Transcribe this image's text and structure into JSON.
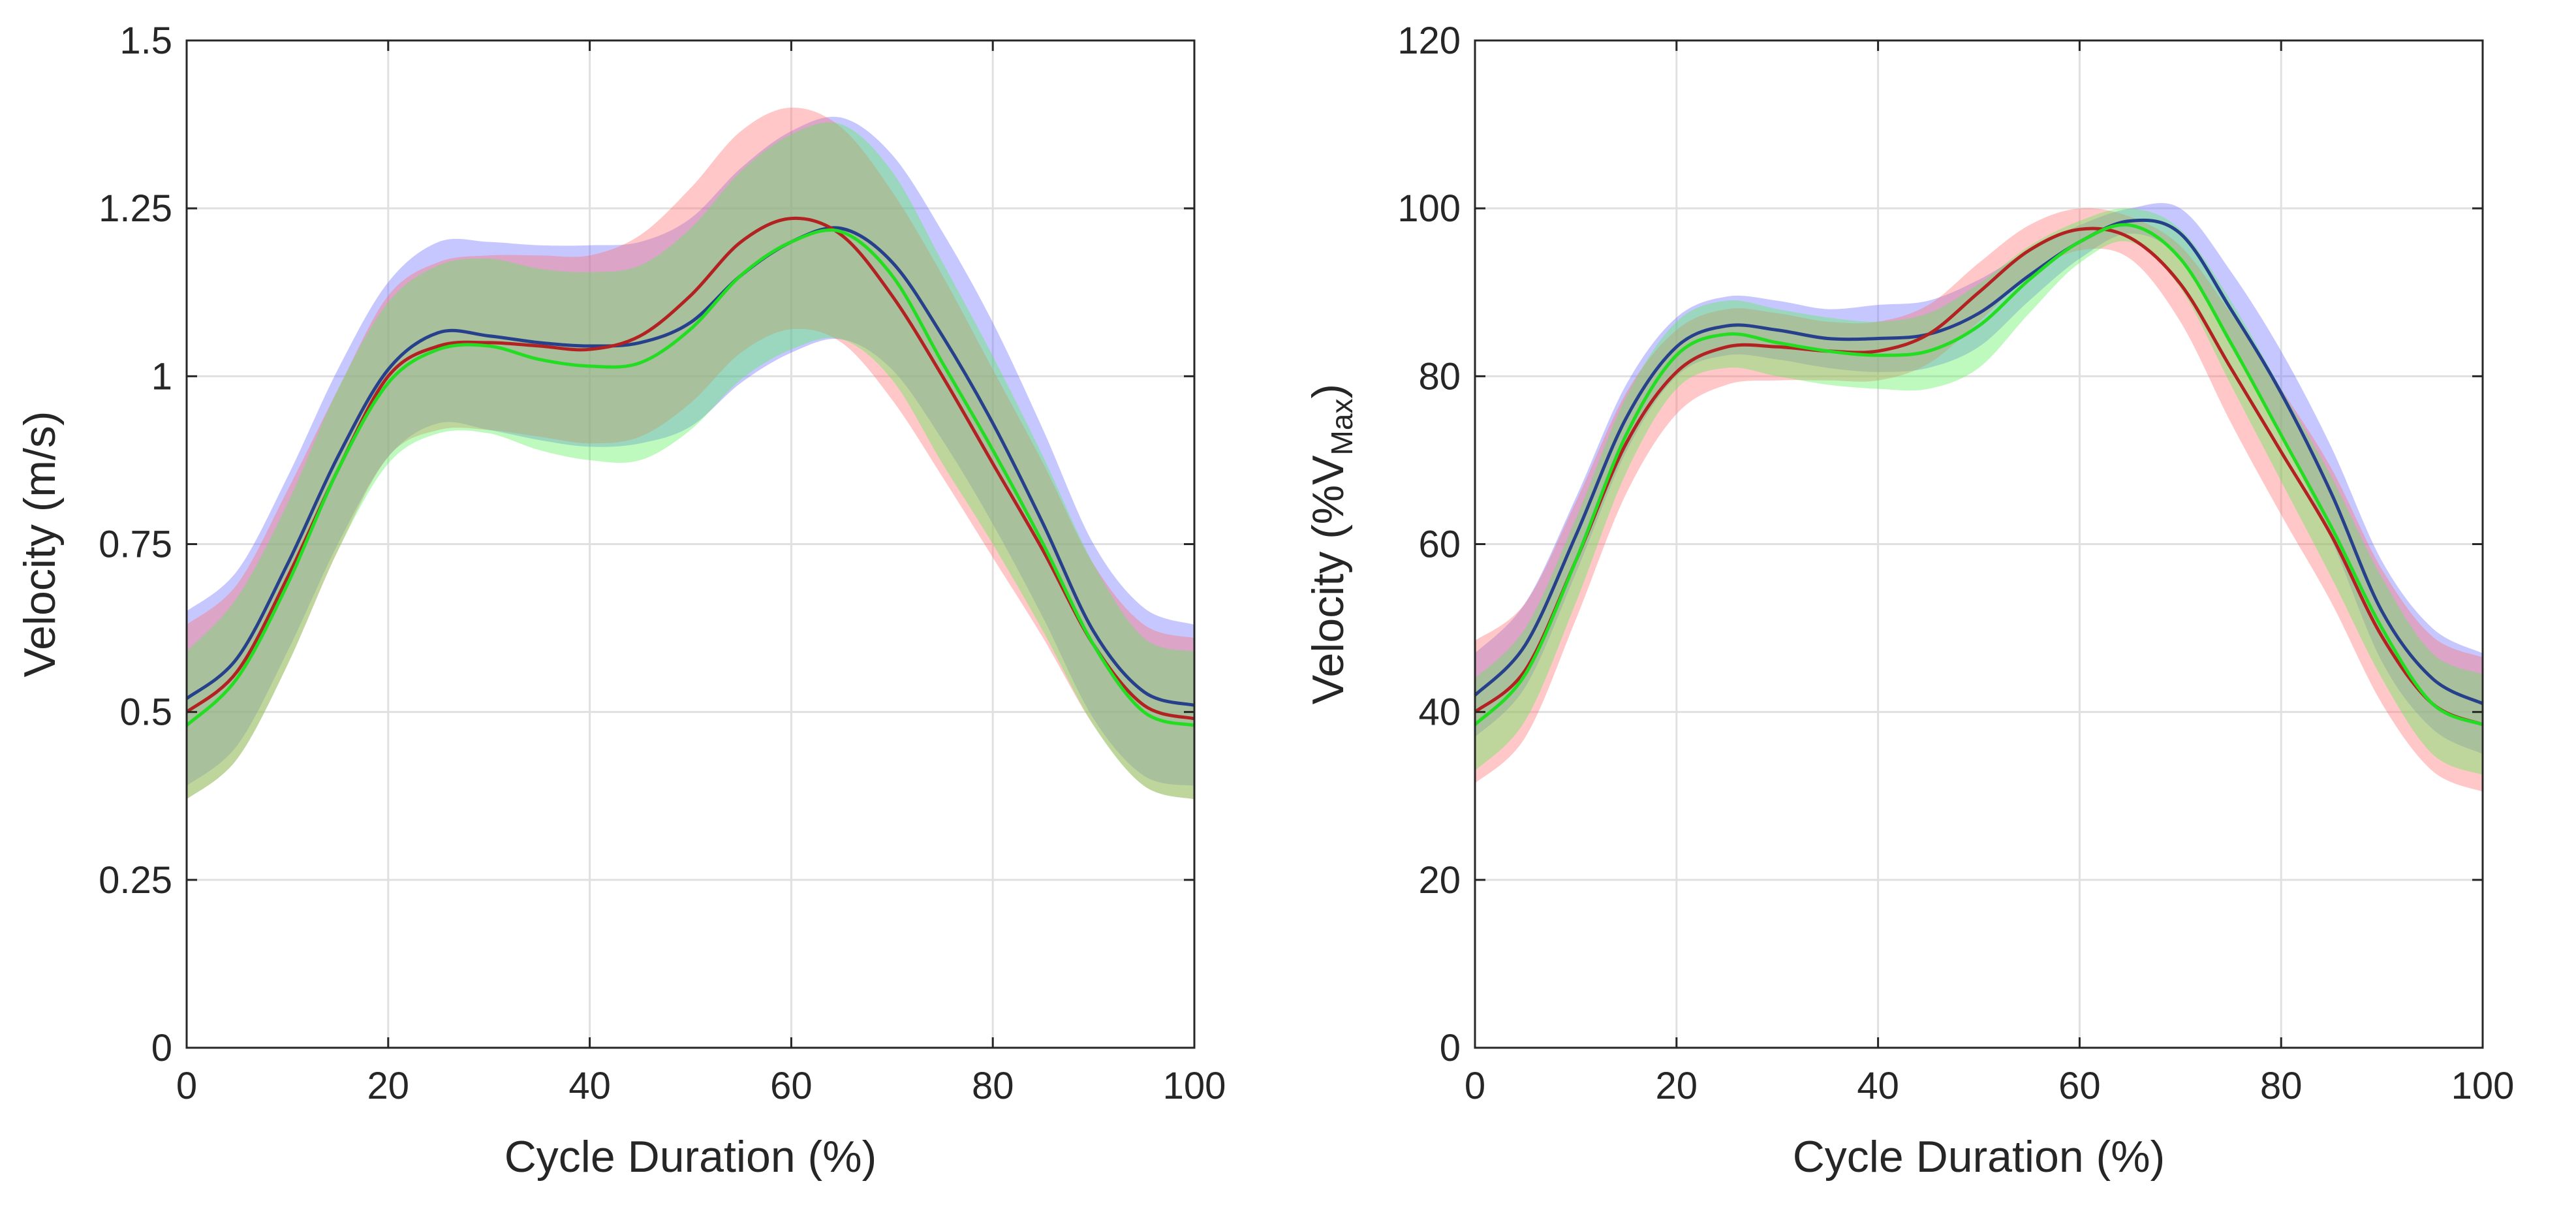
{
  "chart_data": [
    {
      "type": "line",
      "xlabel": "Cycle Duration (%)",
      "ylabel": "Velocity (m/s)",
      "xlim": [
        0,
        100
      ],
      "ylim": [
        0,
        1.5
      ],
      "xticks": [
        0,
        20,
        40,
        60,
        80,
        100
      ],
      "xtick_labels": [
        "0",
        "20",
        "40",
        "60",
        "80",
        "100"
      ],
      "yticks": [
        0,
        0.25,
        0.5,
        0.75,
        1,
        1.25,
        1.5
      ],
      "ytick_labels": [
        "0",
        "0.25",
        "0.5",
        "0.75",
        "1",
        "1.25",
        "1.5"
      ],
      "grid": true,
      "x": [
        0,
        5,
        10,
        15,
        20,
        25,
        30,
        35,
        40,
        45,
        50,
        55,
        60,
        65,
        70,
        75,
        80,
        85,
        90,
        95,
        100
      ],
      "series": [
        {
          "name": "blue",
          "color": "#27408b",
          "band_color": "#6b6bff",
          "values": [
            0.52,
            0.58,
            0.72,
            0.88,
            1.01,
            1.065,
            1.06,
            1.05,
            1.045,
            1.05,
            1.08,
            1.15,
            1.2,
            1.22,
            1.17,
            1.06,
            0.93,
            0.78,
            0.62,
            0.53,
            0.51
          ],
          "sd": [
            0.13,
            0.13,
            0.13,
            0.13,
            0.13,
            0.135,
            0.14,
            0.145,
            0.15,
            0.15,
            0.155,
            0.16,
            0.165,
            0.165,
            0.16,
            0.155,
            0.15,
            0.14,
            0.13,
            0.125,
            0.12
          ]
        },
        {
          "name": "red",
          "color": "#b22222",
          "band_color": "#ff6b6b",
          "values": [
            0.5,
            0.56,
            0.7,
            0.86,
            1.0,
            1.045,
            1.05,
            1.045,
            1.04,
            1.06,
            1.12,
            1.2,
            1.235,
            1.21,
            1.12,
            1.0,
            0.87,
            0.74,
            0.6,
            0.51,
            0.49
          ],
          "sd": [
            0.13,
            0.13,
            0.13,
            0.12,
            0.12,
            0.125,
            0.13,
            0.135,
            0.14,
            0.15,
            0.16,
            0.165,
            0.165,
            0.16,
            0.155,
            0.15,
            0.14,
            0.13,
            0.12,
            0.12,
            0.12
          ]
        },
        {
          "name": "green",
          "color": "#22dd22",
          "band_color": "#55ee55",
          "values": [
            0.48,
            0.55,
            0.69,
            0.86,
            0.99,
            1.04,
            1.045,
            1.025,
            1.015,
            1.02,
            1.07,
            1.15,
            1.2,
            1.215,
            1.15,
            1.02,
            0.89,
            0.75,
            0.6,
            0.5,
            0.48
          ],
          "sd": [
            0.11,
            0.12,
            0.12,
            0.12,
            0.12,
            0.125,
            0.13,
            0.135,
            0.14,
            0.145,
            0.15,
            0.155,
            0.16,
            0.16,
            0.155,
            0.15,
            0.14,
            0.13,
            0.12,
            0.11,
            0.11
          ]
        }
      ]
    },
    {
      "type": "line",
      "xlabel": "Cycle Duration (%)",
      "ylabel_main": "Velocity (%V",
      "ylabel_sub": "Max",
      "ylabel_end": ")",
      "xlim": [
        0,
        100
      ],
      "ylim": [
        0,
        120
      ],
      "xticks": [
        0,
        20,
        40,
        60,
        80,
        100
      ],
      "xtick_labels": [
        "0",
        "20",
        "40",
        "60",
        "80",
        "100"
      ],
      "yticks": [
        0,
        20,
        40,
        60,
        80,
        100,
        120
      ],
      "ytick_labels": [
        "0",
        "20",
        "40",
        "60",
        "80",
        "100",
        "120"
      ],
      "grid": true,
      "x": [
        0,
        5,
        10,
        15,
        20,
        25,
        30,
        35,
        40,
        45,
        50,
        55,
        60,
        65,
        70,
        75,
        80,
        85,
        90,
        95,
        100
      ],
      "series": [
        {
          "name": "blue",
          "color": "#27408b",
          "band_color": "#6b6bff",
          "values": [
            42,
            48,
            61,
            75,
            83.5,
            86,
            85.5,
            84.5,
            84.5,
            85,
            87.5,
            92,
            96,
            98.5,
            97,
            88,
            78,
            66,
            52,
            44,
            41
          ],
          "sd": [
            5,
            5,
            4.5,
            4,
            3.5,
            3.5,
            3.5,
            3.5,
            4,
            4,
            4,
            3,
            2,
            1.5,
            3,
            4.5,
            5,
            5.5,
            6,
            6,
            6
          ]
        },
        {
          "name": "red",
          "color": "#b22222",
          "band_color": "#ff6b6b",
          "values": [
            40,
            45,
            58,
            72,
            80.5,
            83.5,
            83.5,
            83,
            83,
            85,
            90,
            95,
            97.5,
            96.5,
            91,
            81,
            71,
            61,
            49,
            41,
            38.5
          ],
          "sd": [
            8.5,
            8,
            7,
            6,
            5,
            4.5,
            4,
            3.5,
            3.5,
            3.5,
            3.5,
            3,
            2.5,
            2.5,
            4.5,
            6.5,
            7.5,
            8,
            8,
            8,
            8
          ]
        },
        {
          "name": "green",
          "color": "#22dd22",
          "band_color": "#55ee55",
          "values": [
            38.5,
            44.5,
            58,
            73,
            82.5,
            85,
            84,
            83,
            82.5,
            83,
            86,
            91.5,
            96,
            98,
            94,
            84,
            73,
            62,
            50,
            41,
            38.5
          ],
          "sd": [
            5.5,
            5.5,
            5,
            4.5,
            4,
            4,
            4,
            4,
            4,
            4.5,
            5,
            4,
            2.5,
            2,
            3.5,
            5,
            5.5,
            6,
            6,
            6,
            6
          ]
        }
      ]
    }
  ]
}
